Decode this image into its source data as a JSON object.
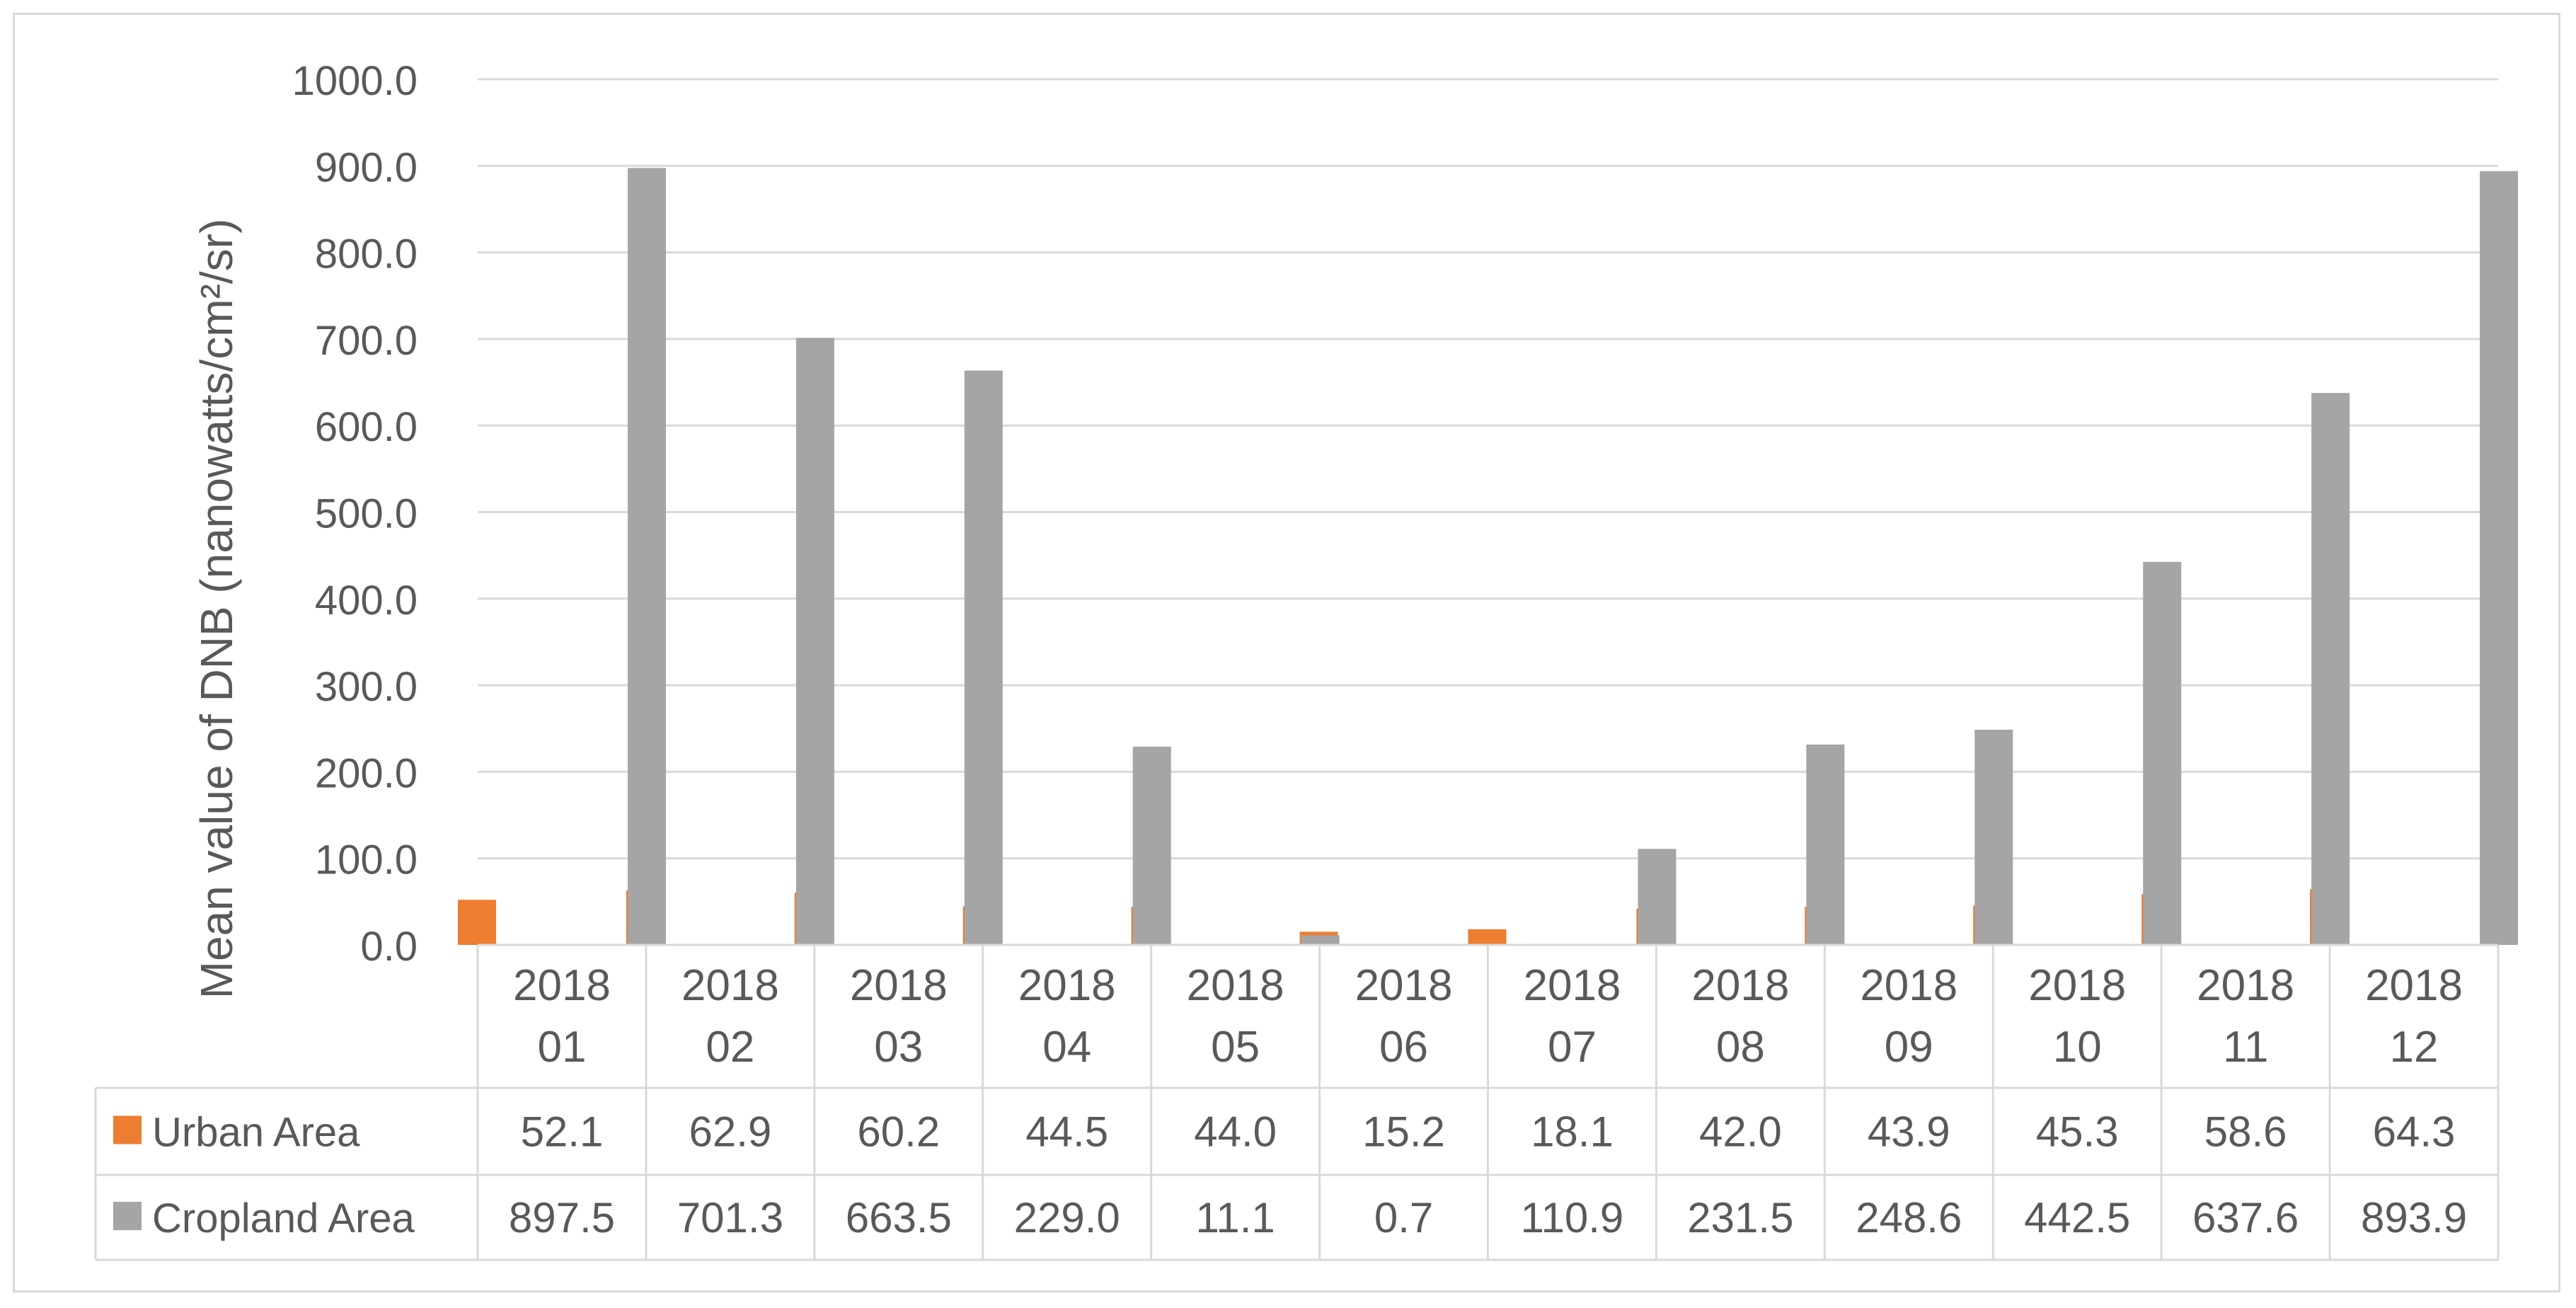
{
  "chart_data": {
    "type": "bar",
    "ylabel": "Mean value of DNB (nanowatts/cm²/sr)",
    "ylim": [
      0,
      1000
    ],
    "yticks": [
      "0.0",
      "100.0",
      "200.0",
      "300.0",
      "400.0",
      "500.0",
      "600.0",
      "700.0",
      "800.0",
      "900.0",
      "1000.0"
    ],
    "categories": [
      {
        "line1": "2018",
        "line2": "01"
      },
      {
        "line1": "2018",
        "line2": "02"
      },
      {
        "line1": "2018",
        "line2": "03"
      },
      {
        "line1": "2018",
        "line2": "04"
      },
      {
        "line1": "2018",
        "line2": "05"
      },
      {
        "line1": "2018",
        "line2": "06"
      },
      {
        "line1": "2018",
        "line2": "07"
      },
      {
        "line1": "2018",
        "line2": "08"
      },
      {
        "line1": "2018",
        "line2": "09"
      },
      {
        "line1": "2018",
        "line2": "10"
      },
      {
        "line1": "2018",
        "line2": "11"
      },
      {
        "line1": "2018",
        "line2": "12"
      }
    ],
    "series": [
      {
        "name": "Urban Area",
        "color": "#ed7d31",
        "values": [
          52.1,
          62.9,
          60.2,
          44.5,
          44.0,
          15.2,
          18.1,
          42.0,
          43.9,
          45.3,
          58.6,
          64.3
        ],
        "labels": [
          "52.1",
          "62.9",
          "60.2",
          "44.5",
          "44.0",
          "15.2",
          "18.1",
          "42.0",
          "43.9",
          "45.3",
          "58.6",
          "64.3"
        ]
      },
      {
        "name": "Cropland Area",
        "color": "#a5a5a5",
        "values": [
          897.5,
          701.3,
          663.5,
          229.0,
          11.1,
          0.7,
          110.9,
          231.5,
          248.6,
          442.5,
          637.6,
          893.9
        ],
        "labels": [
          "897.5",
          "701.3",
          "663.5",
          "229.0",
          "11.1",
          "0.7",
          "110.9",
          "231.5",
          "248.6",
          "442.5",
          "637.6",
          "893.9"
        ]
      }
    ],
    "grid": true,
    "legend": "data-table"
  }
}
